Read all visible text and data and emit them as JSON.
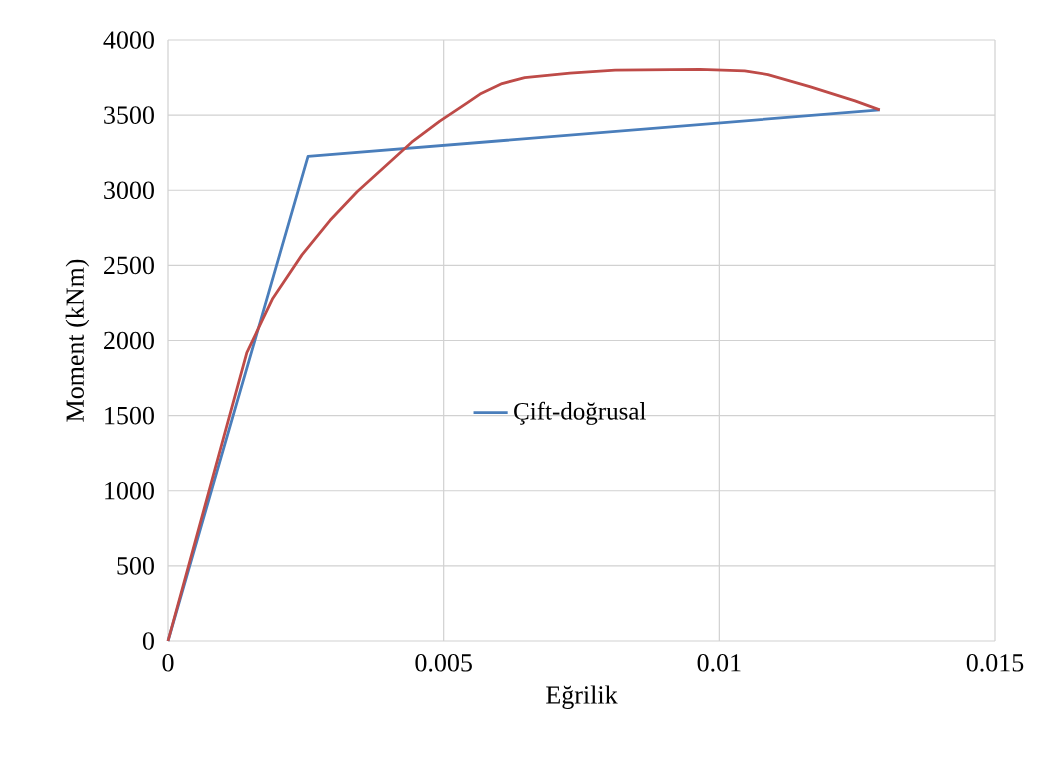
{
  "chart_data": {
    "type": "line",
    "xlabel": "Eğrilik",
    "ylabel": "Moment (kNm)",
    "xlim": [
      0,
      0.015
    ],
    "ylim": [
      0,
      4000
    ],
    "xticks": [
      0,
      0.005,
      0.01,
      0.015
    ],
    "yticks": [
      0,
      500,
      1000,
      1500,
      2000,
      2500,
      3000,
      3500,
      4000
    ],
    "grid": true,
    "legend": "center",
    "marker": "none",
    "line_style": "solid",
    "series": [
      {
        "name": "Çift-doğrusal",
        "color": "#4a7ebb",
        "x": [
          0,
          0.00254,
          0.01291
        ],
        "values": [
          0,
          3225,
          3535
        ]
      },
      {
        "color": "#be4b48",
        "x": [
          0,
          0.00143,
          0.0019,
          0.00243,
          0.00294,
          0.00343,
          0.00394,
          0.00442,
          0.00493,
          0.00542,
          0.00566,
          0.00606,
          0.00647,
          0.00729,
          0.00811,
          0.00965,
          0.01046,
          0.01088,
          0.01164,
          0.01246,
          0.01291
        ],
        "values": [
          0,
          1920,
          2280,
          2570,
          2800,
          2990,
          3160,
          3320,
          3460,
          3580,
          3640,
          3710,
          3750,
          3780,
          3800,
          3805,
          3795,
          3770,
          3690,
          3595,
          3535
        ]
      }
    ]
  }
}
